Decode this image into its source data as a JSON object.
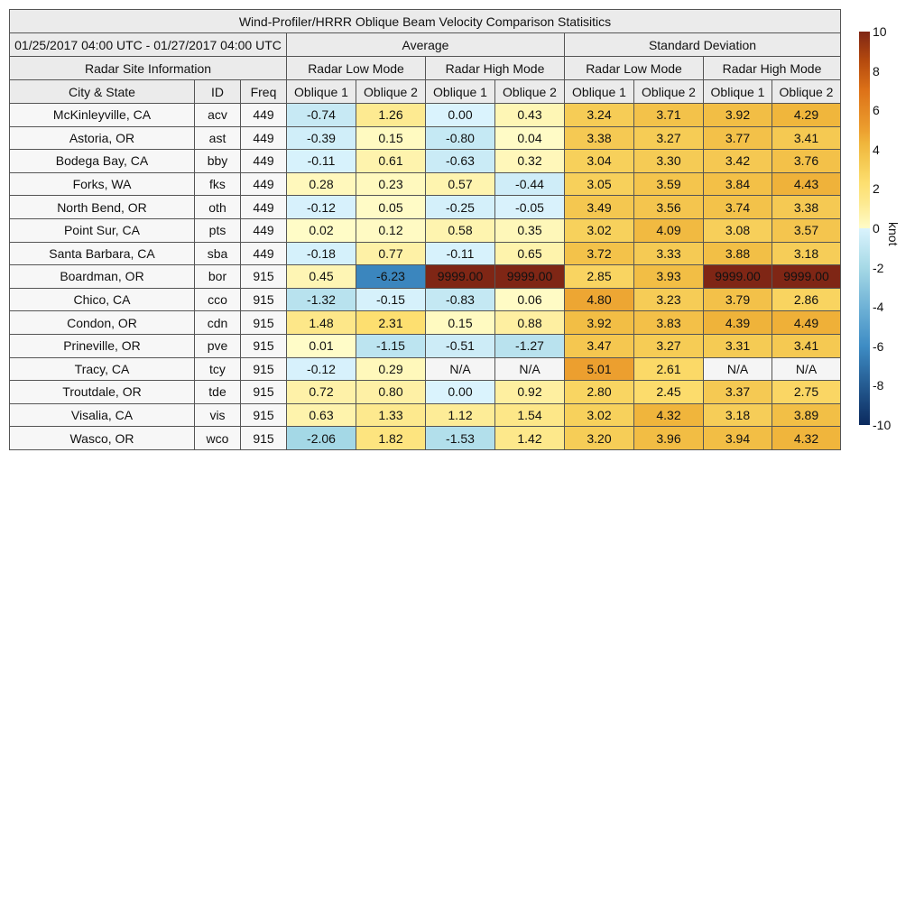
{
  "chart_data": {
    "type": "table",
    "title": "Wind-Profiler/HRRR Oblique Beam Velocity Comparison Statisitics",
    "date_range": "01/25/2017 04:00 UTC - 01/27/2017 04:00 UTC",
    "groups": [
      "Average",
      "Standard Deviation"
    ],
    "site_group": "Radar Site Information",
    "modes": [
      "Radar Low Mode",
      "Radar High Mode",
      "Radar Low Mode",
      "Radar High Mode"
    ],
    "columns": [
      "City & State",
      "ID",
      "Freq",
      "Oblique 1",
      "Oblique 2",
      "Oblique 1",
      "Oblique 2",
      "Oblique 1",
      "Oblique 2",
      "Oblique 1",
      "Oblique 2"
    ],
    "rows": [
      {
        "city": "McKinleyville, CA",
        "id": "acv",
        "freq": "449",
        "values": [
          "-0.74",
          "1.26",
          "0.00",
          "0.43",
          "3.24",
          "3.71",
          "3.92",
          "4.29"
        ]
      },
      {
        "city": "Astoria, OR",
        "id": "ast",
        "freq": "449",
        "values": [
          "-0.39",
          "0.15",
          "-0.80",
          "0.04",
          "3.38",
          "3.27",
          "3.77",
          "3.41"
        ]
      },
      {
        "city": "Bodega Bay, CA",
        "id": "bby",
        "freq": "449",
        "values": [
          "-0.11",
          "0.61",
          "-0.63",
          "0.32",
          "3.04",
          "3.30",
          "3.42",
          "3.76"
        ]
      },
      {
        "city": "Forks, WA",
        "id": "fks",
        "freq": "449",
        "values": [
          "0.28",
          "0.23",
          "0.57",
          "-0.44",
          "3.05",
          "3.59",
          "3.84",
          "4.43"
        ]
      },
      {
        "city": "North Bend, OR",
        "id": "oth",
        "freq": "449",
        "values": [
          "-0.12",
          "0.05",
          "-0.25",
          "-0.05",
          "3.49",
          "3.56",
          "3.74",
          "3.38"
        ]
      },
      {
        "city": "Point Sur, CA",
        "id": "pts",
        "freq": "449",
        "values": [
          "0.02",
          "0.12",
          "0.58",
          "0.35",
          "3.02",
          "4.09",
          "3.08",
          "3.57"
        ]
      },
      {
        "city": "Santa Barbara, CA",
        "id": "sba",
        "freq": "449",
        "values": [
          "-0.18",
          "0.77",
          "-0.11",
          "0.65",
          "3.72",
          "3.33",
          "3.88",
          "3.18"
        ]
      },
      {
        "city": "Boardman, OR",
        "id": "bor",
        "freq": "915",
        "values": [
          "0.45",
          "-6.23",
          "9999.00",
          "9999.00",
          "2.85",
          "3.93",
          "9999.00",
          "9999.00"
        ]
      },
      {
        "city": "Chico, CA",
        "id": "cco",
        "freq": "915",
        "values": [
          "-1.32",
          "-0.15",
          "-0.83",
          "0.06",
          "4.80",
          "3.23",
          "3.79",
          "2.86"
        ]
      },
      {
        "city": "Condon, OR",
        "id": "cdn",
        "freq": "915",
        "values": [
          "1.48",
          "2.31",
          "0.15",
          "0.88",
          "3.92",
          "3.83",
          "4.39",
          "4.49"
        ]
      },
      {
        "city": "Prineville, OR",
        "id": "pve",
        "freq": "915",
        "values": [
          "0.01",
          "-1.15",
          "-0.51",
          "-1.27",
          "3.47",
          "3.27",
          "3.31",
          "3.41"
        ]
      },
      {
        "city": "Tracy, CA",
        "id": "tcy",
        "freq": "915",
        "values": [
          "-0.12",
          "0.29",
          "N/A",
          "N/A",
          "5.01",
          "2.61",
          "N/A",
          "N/A"
        ]
      },
      {
        "city": "Troutdale, OR",
        "id": "tde",
        "freq": "915",
        "values": [
          "0.72",
          "0.80",
          "0.00",
          "0.92",
          "2.80",
          "2.45",
          "3.37",
          "2.75"
        ]
      },
      {
        "city": "Visalia, CA",
        "id": "vis",
        "freq": "915",
        "values": [
          "0.63",
          "1.33",
          "1.12",
          "1.54",
          "3.02",
          "4.32",
          "3.18",
          "3.89"
        ]
      },
      {
        "city": "Wasco, OR",
        "id": "wco",
        "freq": "915",
        "values": [
          "-2.06",
          "1.82",
          "-1.53",
          "1.42",
          "3.20",
          "3.96",
          "3.94",
          "4.32"
        ]
      }
    ],
    "colorbar": {
      "label": "knot",
      "range": [
        -10,
        10
      ],
      "ticks": [
        "10",
        "8",
        "6",
        "4",
        "2",
        "0",
        "-2",
        "-4",
        "-6",
        "-8",
        "-10"
      ],
      "stops": [
        {
          "v": -10,
          "c": "#0b2a5e"
        },
        {
          "v": -6,
          "c": "#3e8cc4"
        },
        {
          "v": -4,
          "c": "#6fb2d6"
        },
        {
          "v": -2,
          "c": "#a6d9e6"
        },
        {
          "v": 0,
          "c": "#daf3fd"
        },
        {
          "v": 0.001,
          "c": "#fffcc8"
        },
        {
          "v": 1.3,
          "c": "#fde98f"
        },
        {
          "v": 2.3,
          "c": "#fddf70"
        },
        {
          "v": 3.2,
          "c": "#f6cd57"
        },
        {
          "v": 4.3,
          "c": "#f0b63c"
        },
        {
          "v": 5,
          "c": "#ec9f2f"
        },
        {
          "v": 7,
          "c": "#dd7218"
        },
        {
          "v": 8.5,
          "c": "#b54a0e"
        },
        {
          "v": 10,
          "c": "#7f2615"
        }
      ],
      "missing_color": "#f5f5f5",
      "flag_color": "#7f2615"
    }
  }
}
